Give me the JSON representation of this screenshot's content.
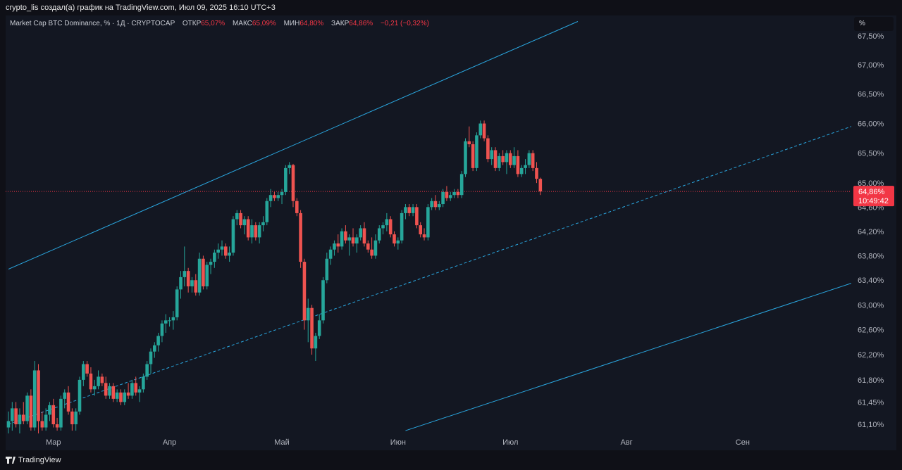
{
  "header": {
    "caption": "crypto_lis создал(а) график на TradingView.com, Июл 09, 2025 16:10 UTC+3"
  },
  "legend": {
    "symbol": "Market Cap BTC Dominance, % · 1Д · CRYPTOCAP",
    "open_label": "ОТКР",
    "open_value": "65,07%",
    "high_label": "МАКС",
    "high_value": "65,09%",
    "low_label": "МИН",
    "low_value": "64,80%",
    "close_label": "ЗАКР",
    "close_value": "64,86%",
    "change": "−0,21 (−0,32%)"
  },
  "unit_button": "%",
  "footer": {
    "brand": "TradingView"
  },
  "colors": {
    "up": "#26a69a",
    "down": "#ef5350",
    "channel": "#2aa7e0",
    "price_line": "#f23645",
    "bg": "#131722"
  },
  "chart_data": {
    "type": "candlestick",
    "title": "Market Cap BTC Dominance, %",
    "x_ticks": [
      "Мар",
      "Апр",
      "Май",
      "Июн",
      "Июл",
      "Авг",
      "Сен"
    ],
    "x_tick_dates": [
      "2025-03-01",
      "2025-04-01",
      "2025-05-01",
      "2025-06-01",
      "2025-07-01",
      "2025-08-01",
      "2025-09-01"
    ],
    "x_range": [
      "2025-02-17",
      "2025-09-30"
    ],
    "y_ticks": [
      "67,50%",
      "67,00%",
      "66,50%",
      "66,00%",
      "65,50%",
      "65,00%",
      "64,60%",
      "64,20%",
      "63,80%",
      "63,40%",
      "63,00%",
      "62,60%",
      "62,20%",
      "61,80%",
      "61,45%",
      "61,10%"
    ],
    "y_tick_values": [
      67.5,
      67.0,
      66.5,
      66.0,
      65.5,
      65.0,
      64.6,
      64.2,
      63.8,
      63.4,
      63.0,
      62.6,
      62.2,
      61.8,
      61.45,
      61.1
    ],
    "y_scale": "log",
    "last_price_label": "64,86%",
    "countdown_label": "10:49:42",
    "last_price": 64.86,
    "grid": false,
    "channel": {
      "upper": [
        [
          "2025-02-17",
          63.58
        ],
        [
          "2025-07-19",
          67.75
        ]
      ],
      "middle": [
        [
          "2025-02-17",
          61.1
        ],
        [
          "2025-09-30",
          65.95
        ]
      ],
      "lower": [
        [
          "2025-06-03",
          61.0
        ],
        [
          "2025-09-30",
          63.35
        ]
      ]
    },
    "candles": [
      [
        "2025-02-17",
        61.05,
        61.3,
        60.95,
        61.15
      ],
      [
        "2025-02-18",
        61.15,
        61.45,
        61.0,
        61.35
      ],
      [
        "2025-02-19",
        61.35,
        61.45,
        61.05,
        61.1
      ],
      [
        "2025-02-20",
        61.1,
        61.35,
        60.95,
        61.25
      ],
      [
        "2025-02-21",
        61.25,
        61.45,
        61.1,
        61.15
      ],
      [
        "2025-02-22",
        61.15,
        61.6,
        61.1,
        61.55
      ],
      [
        "2025-02-23",
        61.55,
        61.65,
        61.0,
        61.05
      ],
      [
        "2025-02-24",
        61.05,
        62.1,
        61.0,
        61.95
      ],
      [
        "2025-02-25",
        61.95,
        62.05,
        60.9,
        61.15
      ],
      [
        "2025-02-26",
        61.15,
        61.3,
        61.0,
        61.05
      ],
      [
        "2025-02-27",
        61.05,
        61.35,
        61.0,
        61.25
      ],
      [
        "2025-02-28",
        61.25,
        61.45,
        61.15,
        61.4
      ],
      [
        "2025-03-01",
        61.4,
        61.5,
        61.05,
        61.1
      ],
      [
        "2025-03-02",
        61.1,
        61.2,
        61.0,
        61.05
      ],
      [
        "2025-03-03",
        61.05,
        61.55,
        61.0,
        61.5
      ],
      [
        "2025-03-04",
        61.5,
        61.65,
        61.35,
        61.6
      ],
      [
        "2025-03-05",
        61.6,
        61.7,
        61.25,
        61.3
      ],
      [
        "2025-03-06",
        61.3,
        61.35,
        61.0,
        61.1
      ],
      [
        "2025-03-07",
        61.1,
        61.35,
        61.0,
        61.3
      ],
      [
        "2025-03-08",
        61.3,
        61.85,
        61.25,
        61.8
      ],
      [
        "2025-03-09",
        61.8,
        62.1,
        61.7,
        62.05
      ],
      [
        "2025-03-10",
        62.05,
        62.1,
        61.85,
        61.9
      ],
      [
        "2025-03-11",
        61.9,
        62.0,
        61.6,
        61.65
      ],
      [
        "2025-03-12",
        61.65,
        61.8,
        61.55,
        61.7
      ],
      [
        "2025-03-13",
        61.7,
        61.95,
        61.65,
        61.85
      ],
      [
        "2025-03-14",
        61.85,
        61.9,
        61.7,
        61.75
      ],
      [
        "2025-03-15",
        61.75,
        61.85,
        61.5,
        61.55
      ],
      [
        "2025-03-16",
        61.55,
        61.75,
        61.5,
        61.7
      ],
      [
        "2025-03-17",
        61.7,
        61.75,
        61.45,
        61.5
      ],
      [
        "2025-03-18",
        61.5,
        61.65,
        61.45,
        61.6
      ],
      [
        "2025-03-19",
        61.6,
        61.65,
        61.4,
        61.45
      ],
      [
        "2025-03-20",
        61.45,
        61.65,
        61.4,
        61.6
      ],
      [
        "2025-03-21",
        61.6,
        61.75,
        61.5,
        61.55
      ],
      [
        "2025-03-22",
        61.55,
        61.8,
        61.5,
        61.75
      ],
      [
        "2025-03-23",
        61.75,
        61.85,
        61.55,
        61.6
      ],
      [
        "2025-03-24",
        61.6,
        61.7,
        61.45,
        61.65
      ],
      [
        "2025-03-25",
        61.65,
        61.9,
        61.6,
        61.85
      ],
      [
        "2025-03-26",
        61.85,
        62.1,
        61.8,
        62.05
      ],
      [
        "2025-03-27",
        62.05,
        62.3,
        61.9,
        62.25
      ],
      [
        "2025-03-28",
        62.25,
        62.4,
        62.15,
        62.35
      ],
      [
        "2025-03-29",
        62.35,
        62.55,
        62.25,
        62.5
      ],
      [
        "2025-03-30",
        62.5,
        62.75,
        62.4,
        62.7
      ],
      [
        "2025-03-31",
        62.7,
        62.85,
        62.55,
        62.75
      ],
      [
        "2025-04-01",
        62.75,
        62.8,
        62.65,
        62.75
      ],
      [
        "2025-04-02",
        62.75,
        62.9,
        62.6,
        62.8
      ],
      [
        "2025-04-03",
        62.8,
        63.3,
        62.75,
        63.25
      ],
      [
        "2025-04-04",
        63.25,
        63.55,
        63.1,
        63.45
      ],
      [
        "2025-04-05",
        63.45,
        63.95,
        63.3,
        63.55
      ],
      [
        "2025-04-06",
        63.55,
        63.6,
        63.2,
        63.3
      ],
      [
        "2025-04-07",
        63.3,
        63.45,
        63.2,
        63.4
      ],
      [
        "2025-04-08",
        63.4,
        63.5,
        63.15,
        63.2
      ],
      [
        "2025-04-09",
        63.2,
        63.85,
        63.15,
        63.75
      ],
      [
        "2025-04-10",
        63.75,
        63.8,
        63.25,
        63.3
      ],
      [
        "2025-04-11",
        63.3,
        63.7,
        63.25,
        63.65
      ],
      [
        "2025-04-12",
        63.65,
        63.75,
        63.5,
        63.7
      ],
      [
        "2025-04-13",
        63.7,
        63.9,
        63.6,
        63.85
      ],
      [
        "2025-04-14",
        63.85,
        64.0,
        63.75,
        63.9
      ],
      [
        "2025-04-15",
        63.9,
        64.05,
        63.8,
        63.95
      ],
      [
        "2025-04-16",
        63.95,
        64.0,
        63.75,
        63.8
      ],
      [
        "2025-04-17",
        63.8,
        63.95,
        63.7,
        63.85
      ],
      [
        "2025-04-18",
        63.85,
        64.45,
        63.8,
        64.4
      ],
      [
        "2025-04-19",
        64.4,
        64.55,
        64.3,
        64.5
      ],
      [
        "2025-04-20",
        64.5,
        64.55,
        64.25,
        64.3
      ],
      [
        "2025-04-21",
        64.3,
        64.45,
        64.15,
        64.4
      ],
      [
        "2025-04-22",
        64.4,
        64.45,
        64.05,
        64.1
      ],
      [
        "2025-04-23",
        64.1,
        64.4,
        64.0,
        64.3
      ],
      [
        "2025-04-24",
        64.3,
        64.35,
        64.05,
        64.1
      ],
      [
        "2025-04-25",
        64.1,
        64.35,
        64.0,
        64.3
      ],
      [
        "2025-04-26",
        64.3,
        64.45,
        64.2,
        64.35
      ],
      [
        "2025-04-27",
        64.35,
        64.75,
        64.3,
        64.7
      ],
      [
        "2025-04-28",
        64.7,
        64.9,
        64.6,
        64.8
      ],
      [
        "2025-04-29",
        64.8,
        64.85,
        64.7,
        64.75
      ],
      [
        "2025-04-30",
        64.75,
        64.85,
        64.7,
        64.8
      ],
      [
        "2025-05-01",
        64.8,
        64.9,
        64.65,
        64.85
      ],
      [
        "2025-05-02",
        64.85,
        65.3,
        64.8,
        65.25
      ],
      [
        "2025-05-03",
        65.25,
        65.35,
        65.15,
        65.3
      ],
      [
        "2025-05-04",
        65.3,
        65.32,
        64.6,
        64.7
      ],
      [
        "2025-05-05",
        64.7,
        64.75,
        64.45,
        64.5
      ],
      [
        "2025-05-06",
        64.5,
        64.55,
        63.6,
        63.7
      ],
      [
        "2025-05-07",
        63.7,
        63.75,
        62.6,
        62.75
      ],
      [
        "2025-05-08",
        62.75,
        63.1,
        62.4,
        62.95
      ],
      [
        "2025-05-09",
        62.95,
        63.0,
        62.2,
        62.3
      ],
      [
        "2025-05-10",
        62.3,
        62.55,
        62.1,
        62.5
      ],
      [
        "2025-05-11",
        62.5,
        62.85,
        62.45,
        62.75
      ],
      [
        "2025-05-12",
        62.75,
        63.45,
        62.7,
        63.4
      ],
      [
        "2025-05-13",
        63.4,
        63.85,
        63.35,
        63.75
      ],
      [
        "2025-05-14",
        63.75,
        63.95,
        63.65,
        63.9
      ],
      [
        "2025-05-15",
        63.9,
        64.05,
        63.8,
        64.0
      ],
      [
        "2025-05-16",
        64.0,
        64.15,
        63.85,
        63.95
      ],
      [
        "2025-05-17",
        63.95,
        64.25,
        63.9,
        64.2
      ],
      [
        "2025-05-18",
        64.2,
        64.3,
        64.0,
        64.05
      ],
      [
        "2025-05-19",
        64.05,
        64.15,
        63.8,
        64.1
      ],
      [
        "2025-05-20",
        64.1,
        64.25,
        63.95,
        64.0
      ],
      [
        "2025-05-21",
        64.0,
        64.15,
        63.85,
        64.1
      ],
      [
        "2025-05-22",
        64.1,
        64.3,
        64.05,
        64.25
      ],
      [
        "2025-05-23",
        64.25,
        64.35,
        63.95,
        64.0
      ],
      [
        "2025-05-24",
        64.0,
        64.05,
        63.85,
        63.9
      ],
      [
        "2025-05-25",
        63.9,
        64.1,
        63.75,
        63.8
      ],
      [
        "2025-05-26",
        63.8,
        64.15,
        63.75,
        64.05
      ],
      [
        "2025-05-27",
        64.05,
        64.3,
        64.0,
        64.25
      ],
      [
        "2025-05-28",
        64.25,
        64.35,
        64.15,
        64.3
      ],
      [
        "2025-05-29",
        64.3,
        64.5,
        64.2,
        64.4
      ],
      [
        "2025-05-30",
        64.4,
        64.45,
        64.1,
        64.15
      ],
      [
        "2025-05-31",
        64.15,
        64.2,
        63.95,
        64.0
      ],
      [
        "2025-06-01",
        64.0,
        64.1,
        63.9,
        64.05
      ],
      [
        "2025-06-02",
        64.05,
        64.55,
        64.0,
        64.5
      ],
      [
        "2025-06-03",
        64.5,
        64.65,
        64.4,
        64.6
      ],
      [
        "2025-06-04",
        64.6,
        64.65,
        64.45,
        64.5
      ],
      [
        "2025-06-05",
        64.5,
        64.65,
        64.45,
        64.6
      ],
      [
        "2025-06-06",
        64.6,
        64.65,
        64.25,
        64.3
      ],
      [
        "2025-06-07",
        64.3,
        64.35,
        64.1,
        64.15
      ],
      [
        "2025-06-08",
        64.15,
        64.25,
        64.05,
        64.1
      ],
      [
        "2025-06-09",
        64.1,
        64.65,
        64.05,
        64.6
      ],
      [
        "2025-06-10",
        64.6,
        64.75,
        64.55,
        64.7
      ],
      [
        "2025-06-11",
        64.7,
        64.8,
        64.55,
        64.6
      ],
      [
        "2025-06-12",
        64.6,
        64.7,
        64.55,
        64.65
      ],
      [
        "2025-06-13",
        64.65,
        64.9,
        64.6,
        64.85
      ],
      [
        "2025-06-14",
        64.85,
        64.95,
        64.7,
        64.75
      ],
      [
        "2025-06-15",
        64.75,
        64.85,
        64.7,
        64.8
      ],
      [
        "2025-06-16",
        64.8,
        64.9,
        64.75,
        64.85
      ],
      [
        "2025-06-17",
        64.85,
        64.9,
        64.75,
        64.8
      ],
      [
        "2025-06-18",
        64.8,
        65.2,
        64.75,
        65.15
      ],
      [
        "2025-06-19",
        65.15,
        65.75,
        65.1,
        65.7
      ],
      [
        "2025-06-20",
        65.7,
        65.95,
        65.6,
        65.65
      ],
      [
        "2025-06-21",
        65.65,
        65.7,
        65.2,
        65.25
      ],
      [
        "2025-06-22",
        65.25,
        65.85,
        65.2,
        65.8
      ],
      [
        "2025-06-23",
        65.8,
        66.05,
        65.75,
        66.0
      ],
      [
        "2025-06-24",
        66.0,
        66.05,
        65.7,
        65.75
      ],
      [
        "2025-06-25",
        65.75,
        65.8,
        65.35,
        65.4
      ],
      [
        "2025-06-26",
        65.4,
        65.6,
        65.3,
        65.55
      ],
      [
        "2025-06-27",
        65.55,
        65.6,
        65.2,
        65.25
      ],
      [
        "2025-06-28",
        65.25,
        65.5,
        65.2,
        65.45
      ],
      [
        "2025-06-29",
        65.45,
        65.55,
        65.3,
        65.35
      ],
      [
        "2025-06-30",
        65.35,
        65.55,
        65.15,
        65.5
      ],
      [
        "2025-07-01",
        65.5,
        65.55,
        65.25,
        65.3
      ],
      [
        "2025-07-02",
        65.3,
        65.6,
        65.25,
        65.45
      ],
      [
        "2025-07-03",
        65.45,
        65.55,
        65.1,
        65.15
      ],
      [
        "2025-07-04",
        65.15,
        65.3,
        65.1,
        65.25
      ],
      [
        "2025-07-05",
        65.25,
        65.4,
        65.15,
        65.3
      ],
      [
        "2025-07-06",
        65.3,
        65.55,
        65.25,
        65.5
      ],
      [
        "2025-07-07",
        65.5,
        65.55,
        65.2,
        65.25
      ],
      [
        "2025-07-08",
        65.25,
        65.35,
        65.0,
        65.07
      ],
      [
        "2025-07-09",
        65.07,
        65.09,
        64.8,
        64.86
      ]
    ]
  }
}
